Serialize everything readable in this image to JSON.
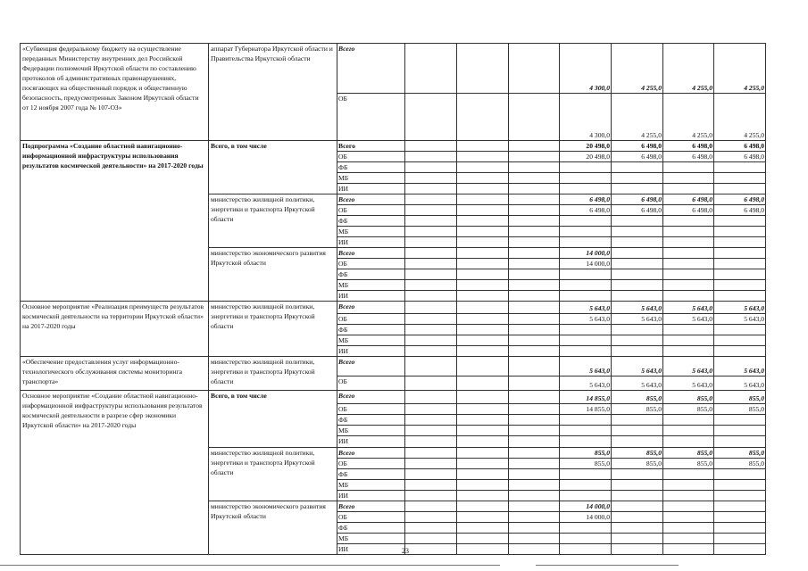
{
  "page_number": "23",
  "blocks": [
    {
      "name": "«Субвенция федеральному бюджету на осуществление переданных Министерству внутренних дел Российской Федерации полномочий Иркутской области по составлению протоколов об административных правонарушениях, посягающих на общественный порядок и общественную безопасность, предусмотренных Законом Иркутской области от 12 ноября 2007 года № 107-ОЗ»",
      "bold": false,
      "executors": [
        {
          "name": "аппарат Губернатора Иркутской области и Правительства Иркутской области",
          "bold": false,
          "rows": [
            {
              "source": "Всего",
              "style": "bi",
              "values": [
                "",
                "",
                "",
                "4 300,0",
                "4 255,0",
                "4 255,0",
                "4 255,0"
              ]
            },
            {
              "source": "ОБ",
              "style": "",
              "values": [
                "",
                "",
                "",
                "4 300,0",
                "4 255,0",
                "4 255,0",
                "4 255,0"
              ]
            }
          ]
        }
      ]
    },
    {
      "name": "Подпрограмма «Создание областной навигационно-информационной инфраструктуры использования результатов космической деятельности» на 2017-2020 годы",
      "bold": true,
      "executors": [
        {
          "name": "Всего, в том числе",
          "bold": true,
          "rows": [
            {
              "source": "Всего",
              "style": "b",
              "values": [
                "",
                "",
                "",
                "20 498,0",
                "6 498,0",
                "6 498,0",
                "6 498,0"
              ]
            },
            {
              "source": "ОБ",
              "style": "",
              "values": [
                "",
                "",
                "",
                "20 498,0",
                "6 498,0",
                "6 498,0",
                "6 498,0"
              ]
            },
            {
              "source": "ФБ",
              "style": "",
              "values": [
                "",
                "",
                "",
                "",
                "",
                "",
                ""
              ]
            },
            {
              "source": "МБ",
              "style": "",
              "values": [
                "",
                "",
                "",
                "",
                "",
                "",
                ""
              ]
            },
            {
              "source": "ИИ",
              "style": "",
              "values": [
                "",
                "",
                "",
                "",
                "",
                "",
                ""
              ]
            }
          ]
        },
        {
          "name": "министерство жилищной политики, энергетики и транспорта Иркутской области",
          "bold": false,
          "rows": [
            {
              "source": "Всего",
              "style": "bi",
              "values": [
                "",
                "",
                "",
                "6 498,0",
                "6 498,0",
                "6 498,0",
                "6 498,0"
              ]
            },
            {
              "source": "ОБ",
              "style": "",
              "values": [
                "",
                "",
                "",
                "6 498,0",
                "6 498,0",
                "6 498,0",
                "6 498,0"
              ]
            },
            {
              "source": "ФБ",
              "style": "",
              "values": [
                "",
                "",
                "",
                "",
                "",
                "",
                ""
              ]
            },
            {
              "source": "МБ",
              "style": "",
              "values": [
                "",
                "",
                "",
                "",
                "",
                "",
                ""
              ]
            },
            {
              "source": "ИИ",
              "style": "",
              "values": [
                "",
                "",
                "",
                "",
                "",
                "",
                ""
              ]
            }
          ]
        },
        {
          "name": "министерство экономического развития Иркутской области",
          "bold": false,
          "rows": [
            {
              "source": "Всего",
              "style": "bi",
              "values": [
                "",
                "",
                "",
                "14 000,0",
                "",
                "",
                ""
              ]
            },
            {
              "source": "ОБ",
              "style": "",
              "values": [
                "",
                "",
                "",
                "14 000,0",
                "",
                "",
                ""
              ]
            },
            {
              "source": "ФБ",
              "style": "",
              "values": [
                "",
                "",
                "",
                "",
                "",
                "",
                ""
              ]
            },
            {
              "source": "МБ",
              "style": "",
              "values": [
                "",
                "",
                "",
                "",
                "",
                "",
                ""
              ]
            },
            {
              "source": "ИИ",
              "style": "",
              "values": [
                "",
                "",
                "",
                "",
                "",
                "",
                ""
              ]
            }
          ]
        }
      ]
    },
    {
      "name": "Основное мероприятие «Реализация преимуществ результатов космической деятельности на территории Иркутской области» на 2017-2020 годы",
      "bold": false,
      "executors": [
        {
          "name": "министерство жилищной политики, энергетики и транспорта Иркутской области",
          "bold": false,
          "rows": [
            {
              "source": "Всего",
              "style": "bi",
              "values": [
                "",
                "",
                "",
                "5 643,0",
                "5 643,0",
                "5 643,0",
                "5 643,0"
              ]
            },
            {
              "source": "ОБ",
              "style": "",
              "values": [
                "",
                "",
                "",
                "5 643,0",
                "5 643,0",
                "5 643,0",
                "5 643,0"
              ]
            },
            {
              "source": "ФБ",
              "style": "",
              "values": [
                "",
                "",
                "",
                "",
                "",
                "",
                ""
              ]
            },
            {
              "source": "МБ",
              "style": "",
              "values": [
                "",
                "",
                "",
                "",
                "",
                "",
                ""
              ]
            },
            {
              "source": "ИИ",
              "style": "",
              "values": [
                "",
                "",
                "",
                "",
                "",
                "",
                ""
              ]
            }
          ]
        }
      ]
    },
    {
      "name": "«Обеспечение предоставления услуг информационно-технологического обслуживания системы мониторинга транспорта»",
      "bold": false,
      "executors": [
        {
          "name": "министерство жилищной политики, энергетики и транспорта Иркутской области",
          "bold": false,
          "rows": [
            {
              "source": "Всего",
              "style": "bi",
              "values": [
                "",
                "",
                "",
                "5 643,0",
                "5 643,0",
                "5 643,0",
                "5 643,0"
              ]
            },
            {
              "source": "ОБ",
              "style": "",
              "values": [
                "",
                "",
                "",
                "5 643,0",
                "5 643,0",
                "5 643,0",
                "5 643,0"
              ]
            }
          ]
        }
      ]
    },
    {
      "name": "Основное мероприятие «Создание областной навигационно-информационной инфраструктуры использования результатов космической деятельности в разрезе сфер экономики Иркутской области» на 2017-2020 годы",
      "bold": false,
      "executors": [
        {
          "name": "Всего, в том числе",
          "bold": true,
          "rows": [
            {
              "source": "Всего",
              "style": "bi",
              "values": [
                "",
                "",
                "",
                "14 855,0",
                "855,0",
                "855,0",
                "855,0"
              ]
            },
            {
              "source": "ОБ",
              "style": "",
              "values": [
                "",
                "",
                "",
                "14 855,0",
                "855,0",
                "855,0",
                "855,0"
              ]
            },
            {
              "source": "ФБ",
              "style": "",
              "values": [
                "",
                "",
                "",
                "",
                "",
                "",
                ""
              ]
            },
            {
              "source": "МБ",
              "style": "",
              "values": [
                "",
                "",
                "",
                "",
                "",
                "",
                ""
              ]
            },
            {
              "source": "ИИ",
              "style": "",
              "values": [
                "",
                "",
                "",
                "",
                "",
                "",
                ""
              ]
            }
          ]
        },
        {
          "name": "министерство жилищной политики, энергетики и транспорта Иркутской области",
          "bold": false,
          "rows": [
            {
              "source": "Всего",
              "style": "bi",
              "values": [
                "",
                "",
                "",
                "855,0",
                "855,0",
                "855,0",
                "855,0"
              ]
            },
            {
              "source": "ОБ",
              "style": "",
              "values": [
                "",
                "",
                "",
                "855,0",
                "855,0",
                "855,0",
                "855,0"
              ]
            },
            {
              "source": "ФБ",
              "style": "",
              "values": [
                "",
                "",
                "",
                "",
                "",
                "",
                ""
              ]
            },
            {
              "source": "МБ",
              "style": "",
              "values": [
                "",
                "",
                "",
                "",
                "",
                "",
                ""
              ]
            },
            {
              "source": "ИИ",
              "style": "",
              "values": [
                "",
                "",
                "",
                "",
                "",
                "",
                ""
              ]
            }
          ]
        },
        {
          "name": "министерство экономического развития Иркутской области",
          "bold": false,
          "rows": [
            {
              "source": "Всего",
              "style": "bi",
              "values": [
                "",
                "",
                "",
                "14 000,0",
                "",
                "",
                ""
              ]
            },
            {
              "source": "ОБ",
              "style": "",
              "values": [
                "",
                "",
                "",
                "14 000,0",
                "",
                "",
                ""
              ]
            },
            {
              "source": "ФБ",
              "style": "",
              "values": [
                "",
                "",
                "",
                "",
                "",
                "",
                ""
              ]
            },
            {
              "source": "МБ",
              "style": "",
              "values": [
                "",
                "",
                "",
                "",
                "",
                "",
                ""
              ]
            },
            {
              "source": "ИИ",
              "style": "",
              "values": [
                "",
                "",
                "",
                "",
                "",
                "",
                ""
              ]
            }
          ]
        }
      ]
    }
  ]
}
